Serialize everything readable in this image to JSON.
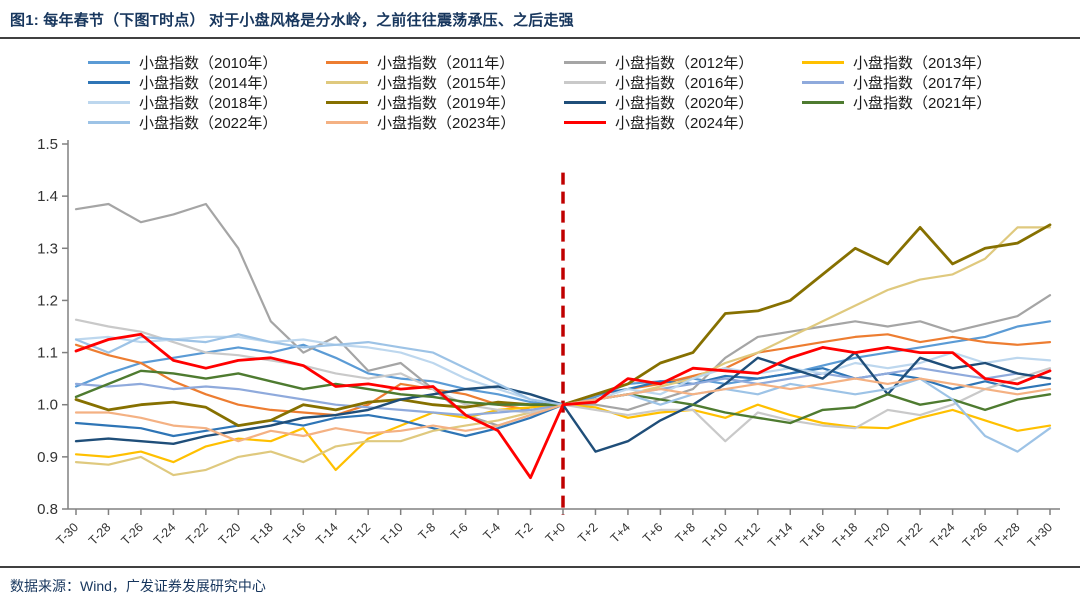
{
  "header": {
    "title": "图1:  每年春节（下图T时点） 对于小盘风格是分水岭，之前往往震荡承压、之后走强"
  },
  "footer": {
    "source": "数据来源：Wind，广发证券发展研究中心"
  },
  "style_colors": {
    "title_text": "#17365D",
    "axis": "#808080",
    "tick_text": "#333333",
    "event_line": "#C00000"
  },
  "chart_data": {
    "type": "line",
    "title": "",
    "xlabel": "",
    "ylabel": "",
    "ylim": [
      0.8,
      1.5
    ],
    "yticks": [
      0.8,
      0.9,
      1.0,
      1.1,
      1.2,
      1.3,
      1.4,
      1.5
    ],
    "grid": false,
    "legend_position": "top",
    "x_labels": [
      "T-30",
      "T-28",
      "T-26",
      "T-24",
      "T-22",
      "T-20",
      "T-18",
      "T-16",
      "T-14",
      "T-12",
      "T-10",
      "T-8",
      "T-6",
      "T-4",
      "T-2",
      "T+0",
      "T+2",
      "T+4",
      "T+6",
      "T+8",
      "T+10",
      "T+12",
      "T+14",
      "T+16",
      "T+18",
      "T+20",
      "T+22",
      "T+24",
      "T+26",
      "T+28",
      "T+30"
    ],
    "event_line": {
      "x": "T+0",
      "color": "#C00000",
      "style": "dashed"
    },
    "series": [
      {
        "name": "小盘指数（2010年）",
        "color": "#5B9BD5",
        "width": 2.2,
        "values": [
          1.035,
          1.06,
          1.08,
          1.09,
          1.1,
          1.11,
          1.1,
          1.115,
          1.09,
          1.06,
          1.05,
          1.045,
          1.03,
          1.02,
          1.005,
          1.0,
          1.015,
          1.04,
          1.045,
          1.05,
          1.04,
          1.05,
          1.06,
          1.075,
          1.09,
          1.1,
          1.11,
          1.12,
          1.13,
          1.15,
          1.16
        ]
      },
      {
        "name": "小盘指数（2011年）",
        "color": "#ED7D31",
        "width": 2.2,
        "values": [
          1.115,
          1.095,
          1.08,
          1.045,
          1.02,
          1.0,
          0.99,
          0.985,
          0.98,
          1.0,
          1.04,
          1.03,
          1.02,
          1.0,
          0.99,
          1.0,
          1.02,
          1.03,
          1.04,
          1.055,
          1.07,
          1.1,
          1.11,
          1.12,
          1.13,
          1.135,
          1.12,
          1.13,
          1.12,
          1.115,
          1.12
        ]
      },
      {
        "name": "小盘指数（2012年）",
        "color": "#A5A5A5",
        "width": 2.2,
        "values": [
          1.375,
          1.385,
          1.35,
          1.365,
          1.385,
          1.3,
          1.16,
          1.1,
          1.13,
          1.065,
          1.08,
          1.03,
          0.98,
          0.96,
          0.98,
          1.0,
          1.0,
          0.99,
          1.01,
          1.03,
          1.09,
          1.13,
          1.14,
          1.15,
          1.16,
          1.15,
          1.16,
          1.14,
          1.155,
          1.17,
          1.21
        ]
      },
      {
        "name": "小盘指数（2013年）",
        "color": "#FFC000",
        "width": 2.2,
        "values": [
          0.905,
          0.9,
          0.91,
          0.89,
          0.92,
          0.935,
          0.93,
          0.955,
          0.875,
          0.935,
          0.96,
          0.985,
          0.975,
          0.99,
          0.995,
          1.0,
          0.995,
          0.975,
          0.985,
          0.99,
          0.975,
          1.0,
          0.98,
          0.965,
          0.957,
          0.955,
          0.975,
          0.99,
          0.97,
          0.95,
          0.96
        ]
      },
      {
        "name": "小盘指数（2014年）",
        "color": "#2E75B6",
        "width": 2.2,
        "values": [
          0.965,
          0.96,
          0.955,
          0.94,
          0.95,
          0.96,
          0.97,
          0.96,
          0.975,
          0.98,
          0.97,
          0.955,
          0.94,
          0.955,
          0.975,
          1.0,
          1.02,
          1.03,
          1.045,
          1.04,
          1.055,
          1.05,
          1.06,
          1.07,
          1.05,
          1.06,
          1.05,
          1.03,
          1.045,
          1.03,
          1.04
        ]
      },
      {
        "name": "小盘指数（2015年）",
        "color": "#DFC97E",
        "width": 2.2,
        "values": [
          0.89,
          0.885,
          0.9,
          0.865,
          0.875,
          0.9,
          0.91,
          0.89,
          0.92,
          0.93,
          0.93,
          0.95,
          0.96,
          0.97,
          0.985,
          1.0,
          1.01,
          1.02,
          1.035,
          1.05,
          1.08,
          1.1,
          1.13,
          1.16,
          1.19,
          1.22,
          1.24,
          1.25,
          1.28,
          1.34,
          1.34
        ]
      },
      {
        "name": "小盘指数（2016年）",
        "color": "#C9C9C9",
        "width": 2.2,
        "values": [
          1.163,
          1.15,
          1.14,
          1.12,
          1.1,
          1.095,
          1.085,
          1.075,
          1.06,
          1.05,
          1.06,
          1.03,
          1.0,
          0.99,
          0.985,
          1.0,
          0.99,
          0.98,
          0.99,
          0.99,
          0.93,
          0.985,
          0.97,
          0.96,
          0.955,
          0.99,
          0.98,
          1.0,
          1.03,
          1.05,
          1.07
        ]
      },
      {
        "name": "小盘指数（2017年）",
        "color": "#8FAADC",
        "width": 2.2,
        "values": [
          1.04,
          1.035,
          1.04,
          1.03,
          1.035,
          1.03,
          1.02,
          1.01,
          1.0,
          0.995,
          0.99,
          0.985,
          0.98,
          0.985,
          0.99,
          1.0,
          1.01,
          1.02,
          1.03,
          1.04,
          1.05,
          1.04,
          1.05,
          1.06,
          1.05,
          1.06,
          1.07,
          1.06,
          1.05,
          1.06,
          1.05
        ]
      },
      {
        "name": "小盘指数（2018年）",
        "color": "#BDD7EE",
        "width": 2.2,
        "values": [
          1.125,
          1.13,
          1.12,
          1.125,
          1.13,
          1.13,
          1.12,
          1.125,
          1.115,
          1.11,
          1.1,
          1.08,
          1.05,
          1.03,
          1.01,
          1.0,
          1.01,
          1.03,
          1.02,
          1.05,
          1.07,
          1.06,
          1.07,
          1.06,
          1.08,
          1.07,
          1.08,
          1.1,
          1.08,
          1.09,
          1.085
        ]
      },
      {
        "name": "小盘指数（2019年）",
        "color": "#867000",
        "width": 2.8,
        "values": [
          1.01,
          0.99,
          1.0,
          1.005,
          0.995,
          0.96,
          0.97,
          1.0,
          0.99,
          1.005,
          1.01,
          1.0,
          0.995,
          1.005,
          1.0,
          1.0,
          1.02,
          1.04,
          1.08,
          1.1,
          1.175,
          1.18,
          1.2,
          1.25,
          1.3,
          1.27,
          1.34,
          1.27,
          1.3,
          1.31,
          1.345
        ]
      },
      {
        "name": "小盘指数（2020年）",
        "color": "#1F4E79",
        "width": 2.4,
        "values": [
          0.93,
          0.935,
          0.93,
          0.925,
          0.94,
          0.95,
          0.96,
          0.975,
          0.98,
          0.99,
          1.01,
          1.02,
          1.03,
          1.035,
          1.02,
          1.0,
          0.91,
          0.93,
          0.97,
          1.0,
          1.04,
          1.09,
          1.07,
          1.05,
          1.1,
          1.02,
          1.09,
          1.07,
          1.08,
          1.06,
          1.05
        ]
      },
      {
        "name": "小盘指数（2021年）",
        "color": "#4E7B30",
        "width": 2.4,
        "values": [
          1.015,
          1.04,
          1.065,
          1.06,
          1.05,
          1.06,
          1.045,
          1.03,
          1.04,
          1.03,
          1.02,
          1.015,
          1.005,
          1.0,
          1.0,
          1.0,
          1.01,
          1.02,
          1.01,
          1.0,
          0.985,
          0.975,
          0.965,
          0.99,
          0.995,
          1.02,
          1.0,
          1.01,
          0.99,
          1.01,
          1.02
        ]
      },
      {
        "name": "小盘指数（2022年）",
        "color": "#9DC3E6",
        "width": 2.2,
        "values": [
          1.125,
          1.1,
          1.13,
          1.125,
          1.12,
          1.135,
          1.12,
          1.11,
          1.115,
          1.12,
          1.11,
          1.1,
          1.07,
          1.04,
          1.01,
          1.0,
          1.01,
          1.02,
          1.0,
          1.02,
          1.03,
          1.02,
          1.04,
          1.03,
          1.02,
          1.03,
          1.05,
          1.01,
          0.94,
          0.91,
          0.955
        ]
      },
      {
        "name": "小盘指数（2023年）",
        "color": "#F4B183",
        "width": 2.2,
        "values": [
          0.985,
          0.985,
          0.975,
          0.96,
          0.955,
          0.93,
          0.95,
          0.94,
          0.955,
          0.945,
          0.95,
          0.96,
          0.95,
          0.96,
          0.98,
          1.0,
          1.01,
          1.02,
          1.03,
          1.02,
          1.03,
          1.04,
          1.03,
          1.04,
          1.05,
          1.04,
          1.05,
          1.04,
          1.03,
          1.02,
          1.03
        ]
      },
      {
        "name": "小盘指数（2024年）",
        "color": "#FF0000",
        "width": 2.8,
        "values": [
          1.103,
          1.125,
          1.135,
          1.085,
          1.07,
          1.085,
          1.09,
          1.075,
          1.035,
          1.04,
          1.03,
          1.035,
          0.98,
          0.95,
          0.86,
          1.0,
          1.005,
          1.05,
          1.04,
          1.07,
          1.065,
          1.06,
          1.09,
          1.11,
          1.1,
          1.11,
          1.1,
          1.1,
          1.05,
          1.04,
          1.065
        ]
      }
    ]
  }
}
